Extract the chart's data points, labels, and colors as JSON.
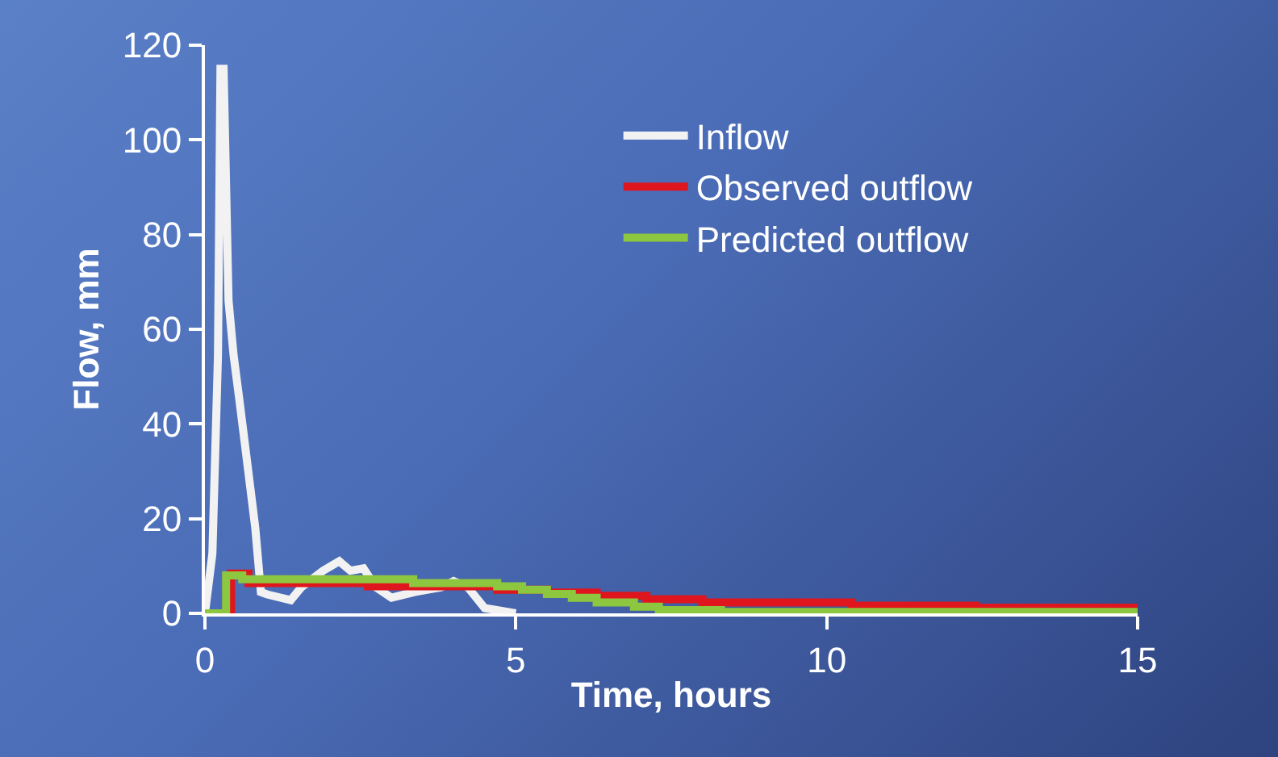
{
  "chart_data": {
    "type": "line",
    "xlabel": "Time, hours",
    "ylabel": "Flow, mm",
    "xlim": [
      0,
      15
    ],
    "xticks": [
      0,
      5,
      10,
      15
    ],
    "ylim": [
      0,
      120
    ],
    "yticks": [
      0,
      20,
      40,
      60,
      80,
      100,
      120
    ],
    "grid": false,
    "legend": "top right",
    "marker": "none",
    "line_style": "solid",
    "series": [
      {
        "name": "Inflow",
        "color": "#f2f2f2",
        "x": [
          0,
          0.12,
          0.21,
          0.25,
          0.3,
          0.38,
          0.46,
          0.55,
          0.68,
          0.81,
          0.9,
          1.0,
          1.38,
          1.55,
          1.9,
          2.16,
          2.34,
          2.55,
          2.75,
          3.0,
          3.37,
          3.8,
          4.0,
          4.23,
          4.5,
          5.0
        ],
        "values": [
          0,
          12.6,
          54.6,
          115,
          115,
          66,
          54.6,
          45.5,
          31.8,
          18,
          4.5,
          4,
          2.8,
          5.5,
          9,
          11,
          9,
          9.5,
          5.5,
          3.3,
          4.5,
          5.5,
          6.8,
          5.5,
          1.1,
          0
        ]
      },
      {
        "name": "Observed outflow",
        "type": "step",
        "color": "#e0161e",
        "x": [
          0,
          0.42,
          0.7,
          2.62,
          4.7,
          5.5,
          6.3,
          7.1,
          8.0,
          10.4,
          12.4,
          15
        ],
        "values": [
          0,
          8.4,
          6.4,
          5.7,
          5,
          4.4,
          3.7,
          3,
          2.3,
          1.6,
          1.2,
          1.2
        ]
      },
      {
        "name": "Predicted outflow",
        "type": "step",
        "color": "#8dc63f",
        "x": [
          0,
          0.34,
          0.6,
          3.35,
          4.7,
          5.1,
          5.5,
          5.9,
          6.3,
          6.9,
          7.3,
          8.3,
          15
        ],
        "values": [
          0,
          8,
          7.2,
          6.4,
          5.7,
          5,
          4.1,
          3.3,
          2.3,
          1.4,
          0.7,
          0.3,
          0.3
        ]
      }
    ]
  }
}
